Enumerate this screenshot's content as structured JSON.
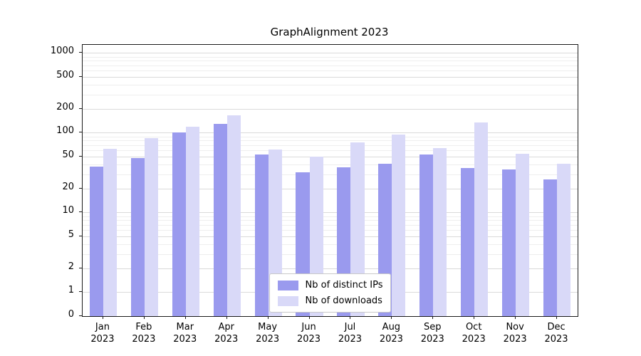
{
  "chart_data": {
    "type": "bar",
    "title": "GraphAlignment 2023",
    "categories": [
      "Jan",
      "Feb",
      "Mar",
      "Apr",
      "May",
      "Jun",
      "Jul",
      "Aug",
      "Sep",
      "Oct",
      "Nov",
      "Dec"
    ],
    "year_label": "2023",
    "series": [
      {
        "name": "Nb of distinct IPs",
        "color": "#9a9aee",
        "values": [
          38,
          48,
          100,
          128,
          53,
          32,
          37,
          41,
          53,
          36,
          35,
          26
        ]
      },
      {
        "name": "Nb of downloads",
        "color": "#d9d9f8",
        "values": [
          63,
          85,
          120,
          165,
          62,
          50,
          75,
          95,
          64,
          135,
          55,
          41
        ]
      }
    ],
    "yscale": "symlog",
    "yticks": [
      0,
      1,
      2,
      5,
      10,
      20,
      50,
      100,
      200,
      500,
      1000
    ],
    "ylim": [
      0,
      1300
    ],
    "grid": "horizontal-major-minor",
    "legend_position": "lower center"
  }
}
